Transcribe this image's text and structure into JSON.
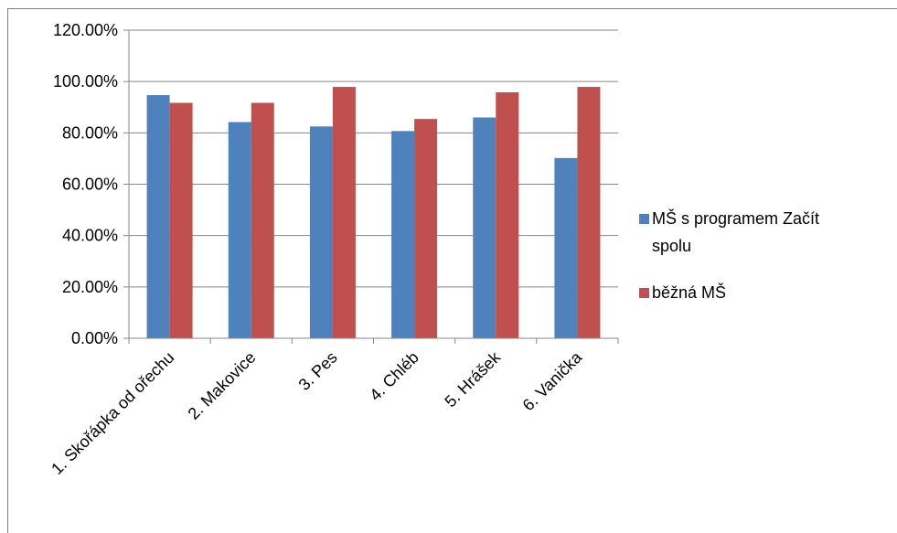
{
  "chart_data": {
    "type": "bar",
    "categories": [
      "1. Skořápka od ořechu",
      "2. Makovice",
      "3. Pes",
      "4. Chléb",
      "5. Hrášek",
      "6. Vanička"
    ],
    "series": [
      {
        "name": "MŠ s programem Začít spolu",
        "color": "#4f81bd",
        "values": [
          94.7,
          84.2,
          82.5,
          80.7,
          86.0,
          70.2
        ]
      },
      {
        "name": "běžná MŠ",
        "color": "#c0504d",
        "values": [
          91.7,
          91.7,
          97.9,
          85.4,
          95.8,
          97.9
        ]
      }
    ],
    "ylim": [
      0,
      120
    ],
    "yticks": [
      "0.00%",
      "20.00%",
      "40.00%",
      "60.00%",
      "80.00%",
      "100.00%",
      "120.00%"
    ],
    "grid": true,
    "legend_position": "right",
    "legend_lines": [
      [
        "MŠ s programem Začít",
        "spolu"
      ],
      [
        "běžná MŠ"
      ]
    ]
  }
}
